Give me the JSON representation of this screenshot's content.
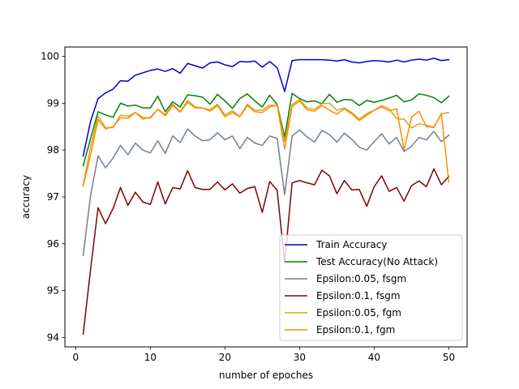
{
  "chart_data": {
    "type": "line",
    "title": "",
    "xlabel": "number of epoches",
    "ylabel": "accuracy",
    "xlim": [
      -1.45,
      52.45
    ],
    "ylim": [
      93.8,
      100.2
    ],
    "xticks": [
      0,
      10,
      20,
      30,
      40,
      50
    ],
    "yticks": [
      94,
      95,
      96,
      97,
      98,
      99,
      100
    ],
    "grid": false,
    "legend_position": "lower-right",
    "x": [
      1,
      2,
      3,
      4,
      5,
      6,
      7,
      8,
      9,
      10,
      11,
      12,
      13,
      14,
      15,
      16,
      17,
      18,
      19,
      20,
      21,
      22,
      23,
      24,
      25,
      26,
      27,
      28,
      29,
      30,
      31,
      32,
      33,
      34,
      35,
      36,
      37,
      38,
      39,
      40,
      41,
      42,
      43,
      44,
      45,
      46,
      47,
      48,
      49,
      50
    ],
    "series": [
      {
        "name": "Train Accuracy",
        "color": "#0000cc",
        "values": [
          97.87,
          98.62,
          99.1,
          99.22,
          99.3,
          99.48,
          99.47,
          99.6,
          99.65,
          99.7,
          99.73,
          99.68,
          99.74,
          99.64,
          99.85,
          99.8,
          99.75,
          99.86,
          99.88,
          99.82,
          99.78,
          99.89,
          99.88,
          99.9,
          99.77,
          99.89,
          99.76,
          99.25,
          99.91,
          99.93,
          99.93,
          99.93,
          99.93,
          99.92,
          99.9,
          99.93,
          99.88,
          99.86,
          99.89,
          99.91,
          99.9,
          99.88,
          99.92,
          99.88,
          99.92,
          99.94,
          99.92,
          99.96,
          99.91,
          99.93
        ]
      },
      {
        "name": "Test Accuracy(No Attack)",
        "color": "#008000",
        "values": [
          97.66,
          98.25,
          98.82,
          98.75,
          98.7,
          99.0,
          98.94,
          98.96,
          98.9,
          98.9,
          99.15,
          98.82,
          99.03,
          98.92,
          99.18,
          99.16,
          99.13,
          98.98,
          99.19,
          99.05,
          98.89,
          99.1,
          99.2,
          99.05,
          98.92,
          99.17,
          98.97,
          98.28,
          99.21,
          99.1,
          99.03,
          99.05,
          98.99,
          99.19,
          99.02,
          99.08,
          99.07,
          98.95,
          99.06,
          99.02,
          99.06,
          99.11,
          99.17,
          99.03,
          99.07,
          99.2,
          99.17,
          99.12,
          99.01,
          99.15
        ]
      },
      {
        "name": "Epsilon:0.05, fsgm",
        "color": "#708090",
        "values": [
          95.75,
          97.04,
          97.88,
          97.62,
          97.83,
          98.1,
          97.9,
          98.15,
          98.0,
          97.94,
          98.2,
          97.93,
          98.3,
          98.16,
          98.45,
          98.3,
          98.2,
          98.22,
          98.37,
          98.22,
          98.3,
          98.03,
          98.27,
          98.15,
          98.1,
          98.3,
          98.25,
          97.05,
          98.3,
          98.43,
          98.28,
          98.17,
          98.42,
          98.33,
          98.17,
          98.36,
          98.23,
          98.06,
          98.0,
          98.18,
          98.35,
          98.13,
          98.27,
          97.97,
          98.08,
          98.27,
          98.22,
          98.4,
          98.18,
          98.32
        ]
      },
      {
        "name": "Epsilon:0.1, fsgm",
        "color": "#800000",
        "values": [
          94.07,
          95.46,
          96.77,
          96.43,
          96.75,
          97.2,
          96.82,
          97.1,
          96.89,
          96.84,
          97.32,
          96.85,
          97.2,
          97.17,
          97.56,
          97.2,
          97.16,
          97.16,
          97.32,
          97.15,
          97.28,
          97.08,
          97.18,
          97.22,
          96.67,
          97.33,
          97.14,
          95.6,
          97.3,
          97.35,
          97.3,
          97.26,
          97.57,
          97.45,
          97.07,
          97.35,
          97.15,
          97.16,
          96.8,
          97.22,
          97.45,
          97.12,
          97.2,
          96.91,
          97.24,
          97.34,
          97.22,
          97.6,
          97.26,
          97.44
        ]
      },
      {
        "name": "Epsilon:0.05, fgm",
        "color": "#daa520",
        "values": [
          97.25,
          98.08,
          98.72,
          98.48,
          98.48,
          98.75,
          98.72,
          98.8,
          98.7,
          98.68,
          98.87,
          98.76,
          98.98,
          98.82,
          99.06,
          98.92,
          98.9,
          98.86,
          98.98,
          98.75,
          98.84,
          98.72,
          98.98,
          98.85,
          98.85,
          98.96,
          98.95,
          98.18,
          98.97,
          99.08,
          98.9,
          98.87,
          98.99,
          99.0,
          98.85,
          98.9,
          98.8,
          98.66,
          98.78,
          98.85,
          98.95,
          98.88,
          98.67,
          98.66,
          98.47,
          98.56,
          98.53,
          98.49,
          98.78,
          98.8
        ]
      },
      {
        "name": "Epsilon:0.1, fgm",
        "color": "#ff8c00",
        "values": [
          97.23,
          97.9,
          98.65,
          98.45,
          98.5,
          98.69,
          98.68,
          98.8,
          98.66,
          98.7,
          98.87,
          98.73,
          98.95,
          98.81,
          99.02,
          98.9,
          98.9,
          98.83,
          98.95,
          98.71,
          98.8,
          98.71,
          98.95,
          98.82,
          98.8,
          98.92,
          98.96,
          98.02,
          98.93,
          99.05,
          98.86,
          98.83,
          98.95,
          98.85,
          98.77,
          98.88,
          98.77,
          98.63,
          98.74,
          98.85,
          98.92,
          98.84,
          98.88,
          98.0,
          98.7,
          98.83,
          98.5,
          98.48,
          98.78,
          97.32
        ]
      }
    ]
  }
}
